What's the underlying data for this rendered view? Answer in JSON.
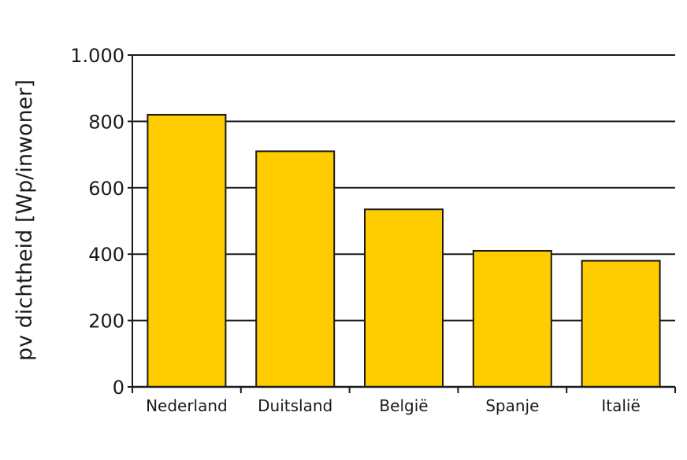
{
  "chart_data": {
    "type": "bar",
    "title": "",
    "xlabel": "",
    "ylabel": "pv dichtheid [Wp/inwoner]",
    "categories": [
      "Nederland",
      "Duitsland",
      "België",
      "Spanje",
      "Italië"
    ],
    "values": [
      820,
      710,
      535,
      410,
      380
    ],
    "ylim": [
      0,
      1000
    ],
    "yticks": [
      0,
      200,
      400,
      600,
      800,
      1000
    ],
    "ytick_labels": [
      "0",
      "200",
      "400",
      "600",
      "800",
      "1.000"
    ],
    "grid": true,
    "legend": "none",
    "colors": {
      "bar_fill": "#FFCC00",
      "bar_stroke": "#1a1a1a",
      "grid": "#1a1a1a",
      "axis": "#1a1a1a"
    }
  }
}
